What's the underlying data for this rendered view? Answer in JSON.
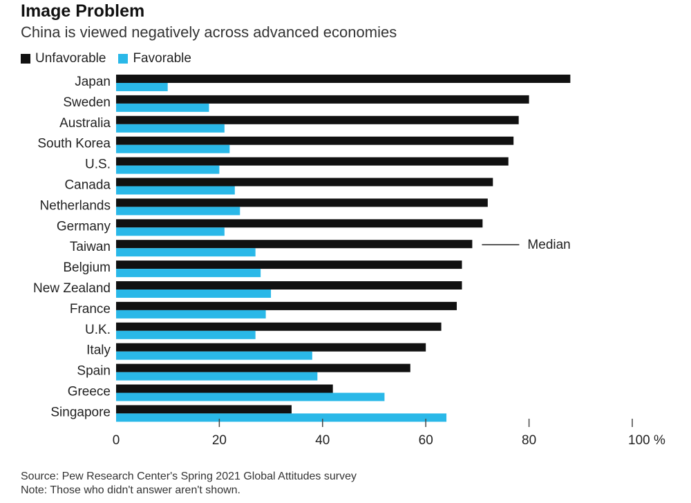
{
  "chart_data": {
    "type": "bar",
    "orientation": "horizontal",
    "title": "Image Problem",
    "subtitle": "China is viewed negatively across advanced economies",
    "categories": [
      "Japan",
      "Sweden",
      "Australia",
      "South Korea",
      "U.S.",
      "Canada",
      "Netherlands",
      "Germany",
      "Taiwan",
      "Belgium",
      "New Zealand",
      "France",
      "U.K.",
      "Italy",
      "Spain",
      "Greece",
      "Singapore"
    ],
    "series": [
      {
        "name": "Unfavorable",
        "color": "#111111",
        "values": [
          88,
          80,
          78,
          77,
          76,
          73,
          72,
          71,
          69,
          67,
          67,
          66,
          63,
          60,
          57,
          42,
          34
        ]
      },
      {
        "name": "Favorable",
        "color": "#2ab8e8",
        "values": [
          10,
          18,
          21,
          22,
          20,
          23,
          24,
          21,
          27,
          28,
          30,
          29,
          27,
          38,
          39,
          52,
          64
        ]
      }
    ],
    "xlim": [
      0,
      100
    ],
    "xticks": [
      0,
      20,
      40,
      60,
      80,
      100
    ],
    "xtick_labels": [
      "0",
      "20",
      "40",
      "60",
      "80",
      "100 %"
    ],
    "annotation": {
      "text": "Median",
      "category": "Taiwan"
    },
    "legend_position": "top-left"
  },
  "source": "Source: Pew Research Center's Spring 2021 Global Attitudes survey",
  "note": "Note: Those who didn't answer aren't shown."
}
